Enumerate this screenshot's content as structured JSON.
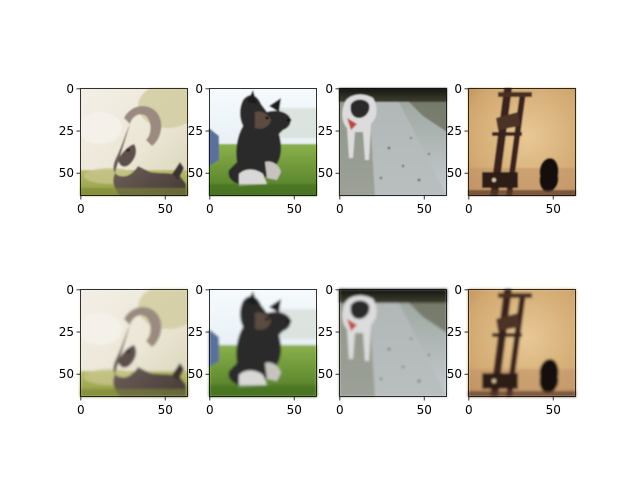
{
  "figure": {
    "layout": {
      "rows": 2,
      "cols": 4
    },
    "axes": {
      "xticks": [
        "0",
        "50"
      ],
      "yticks": [
        "0",
        "25",
        "50"
      ],
      "image_size": 64
    },
    "rows": [
      {
        "name": "top-row",
        "panels": [
          {
            "subject": "ram",
            "icon": "ram-photo"
          },
          {
            "subject": "puppy",
            "icon": "puppy-photo"
          },
          {
            "subject": "dog-on-path",
            "icon": "dog-path-photo"
          },
          {
            "subject": "guillotine",
            "icon": "guillotine-photo"
          }
        ]
      },
      {
        "name": "bottom-row",
        "panels": [
          {
            "subject": "ram",
            "icon": "ram-photo"
          },
          {
            "subject": "puppy",
            "icon": "puppy-photo"
          },
          {
            "subject": "dog-on-path",
            "icon": "dog-path-photo"
          },
          {
            "subject": "guillotine",
            "icon": "guillotine-photo"
          }
        ]
      }
    ],
    "colors": {
      "axis": "#000000",
      "background": "#ffffff"
    }
  }
}
